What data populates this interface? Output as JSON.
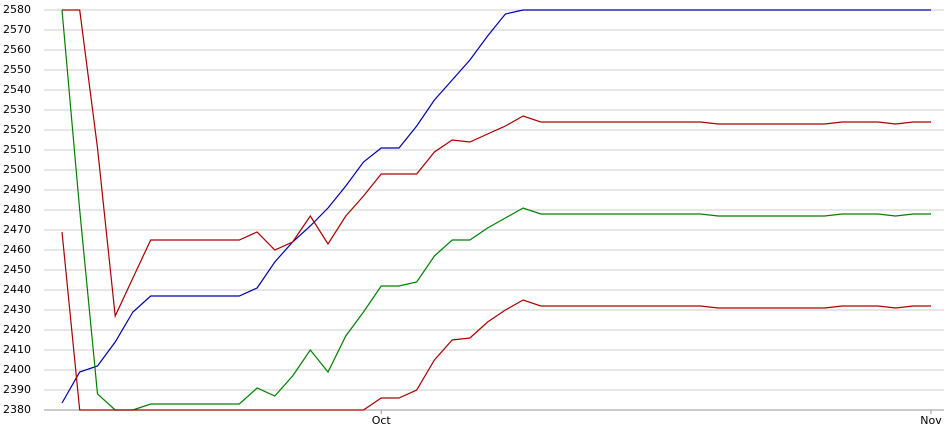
{
  "chart_data": {
    "type": "line",
    "categories": [
      null,
      null,
      null,
      null,
      null,
      null,
      null,
      null,
      null,
      null,
      null,
      null,
      null,
      null,
      null,
      null,
      null,
      null,
      "Oct",
      null,
      null,
      null,
      null,
      null,
      null,
      null,
      null,
      null,
      null,
      null,
      null,
      null,
      null,
      null,
      null,
      null,
      null,
      null,
      null,
      null,
      null,
      null,
      null,
      null,
      null,
      null,
      null,
      null,
      null,
      "Nov"
    ],
    "series": [
      {
        "color": "#0000aa",
        "values": [
          2383.5,
          2399,
          2402,
          2414,
          2429,
          2437,
          2437,
          2437,
          2437,
          2437,
          2437,
          2441,
          2454,
          2464,
          2472,
          2481,
          2492,
          2504,
          2511,
          2511,
          2522,
          2535,
          2545,
          2555,
          2567,
          2578,
          2580,
          2580,
          2580,
          2580,
          2580,
          2580,
          2580,
          2580,
          2580,
          2580,
          2580,
          2580,
          2580,
          2580,
          2580,
          2580,
          2580,
          2580,
          2580,
          2580,
          2580,
          2580,
          2580,
          2580
        ]
      },
      {
        "color": "#aa0000",
        "values": [
          2580,
          2580,
          2511,
          2427,
          2446,
          2465,
          2465,
          2465,
          2465,
          2465,
          2465,
          2469,
          2460,
          2464,
          2477,
          2463,
          2477,
          2487,
          2498,
          2498,
          2498,
          2509,
          2515,
          2514,
          2518,
          2522,
          2527,
          2524,
          2524,
          2524,
          2524,
          2524,
          2524,
          2524,
          2524,
          2524,
          2524,
          2523,
          2523,
          2523,
          2523,
          2523,
          2523,
          2523,
          2524,
          2524,
          2524,
          2523,
          2524,
          2524
        ]
      },
      {
        "color": "#008000",
        "values": [
          2580,
          2480,
          2388,
          2380,
          2380,
          2383,
          2383,
          2383,
          2383,
          2383,
          2383,
          2391,
          2387,
          2397,
          2410,
          2399,
          2417,
          2429,
          2442,
          2442,
          2444,
          2457,
          2465,
          2465,
          2471,
          2476,
          2481,
          2478,
          2478,
          2478,
          2478,
          2478,
          2478,
          2478,
          2478,
          2478,
          2478,
          2477,
          2477,
          2477,
          2477,
          2477,
          2477,
          2477,
          2478,
          2478,
          2478,
          2477,
          2478,
          2478
        ]
      },
      {
        "color": "#aa0000",
        "values": [
          2469,
          2380,
          2380,
          2380,
          2380,
          2380,
          2380,
          2380,
          2380,
          2380,
          2380,
          2380,
          2380,
          2380,
          2380,
          2380,
          2380,
          2380,
          2386,
          2386,
          2390,
          2405,
          2415,
          2416,
          2424,
          2430,
          2435,
          2432,
          2432,
          2432,
          2432,
          2432,
          2432,
          2432,
          2432,
          2432,
          2432,
          2431,
          2431,
          2431,
          2431,
          2431,
          2431,
          2431,
          2432,
          2432,
          2432,
          2431,
          2432,
          2432
        ]
      }
    ],
    "ylim": [
      2380,
      2580
    ],
    "yticks": [
      2380,
      2390,
      2400,
      2410,
      2420,
      2430,
      2440,
      2450,
      2460,
      2470,
      2480,
      2490,
      2500,
      2510,
      2520,
      2530,
      2540,
      2550,
      2560,
      2570,
      2580
    ],
    "grid": true
  }
}
